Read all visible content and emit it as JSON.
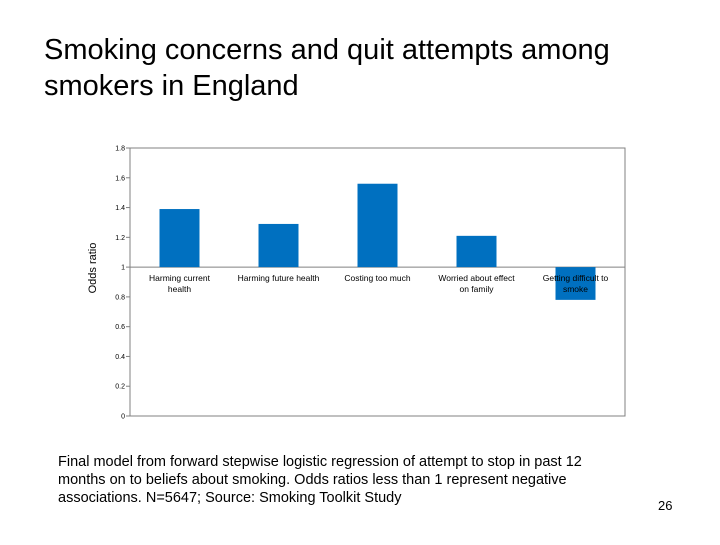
{
  "slide": {
    "title": "Smoking concerns and quit attempts among smokers in England",
    "footnote": "Final model from forward stepwise logistic regression of attempt to stop in past 12 months on to beliefs about smoking. Odds ratios less than 1 represent negative associations. N=5647; Source: Smoking Toolkit Study",
    "page_number": "26"
  },
  "colors": {
    "bar": "#0070C0",
    "axis": "#808080",
    "frame": "#808080",
    "background": "#ffffff"
  },
  "chart_data": {
    "type": "bar",
    "ylabel": "Odds ratio",
    "xlabel": "",
    "ylim": [
      0,
      1.8
    ],
    "baseline": 1,
    "yticks": [
      0,
      0.2,
      0.4,
      0.6,
      0.8,
      1,
      1.2,
      1.4,
      1.6,
      1.8
    ],
    "ytick_labels": [
      "0",
      "0.2",
      "0.4",
      "0.6",
      "0.8",
      "1",
      "1.2",
      "1.4",
      "1.6",
      "1.8"
    ],
    "categories": [
      [
        "Harming current",
        "health"
      ],
      [
        "Harming future health"
      ],
      [
        "Costing too much"
      ],
      [
        "Worried about effect",
        "on family"
      ],
      [
        "Getting difficult to",
        "smoke"
      ]
    ],
    "values": [
      1.39,
      1.29,
      1.56,
      1.21,
      0.78
    ],
    "grid": false,
    "legend": "none"
  }
}
